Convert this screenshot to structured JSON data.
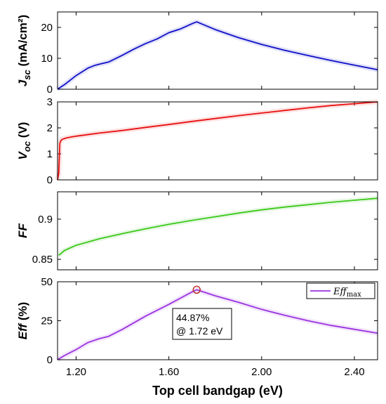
{
  "chart_data": [
    {
      "type": "line",
      "id": "jsc",
      "ylabel": {
        "main": "J",
        "sub": "sc",
        "unit": " (mA/cm²)"
      },
      "xlim": [
        1.12,
        2.5
      ],
      "ylim": [
        0,
        25
      ],
      "yticks": [
        0,
        10,
        20
      ],
      "color": "#1010c8",
      "series": [
        {
          "x": [
            1.12,
            1.15,
            1.2,
            1.25,
            1.28,
            1.3,
            1.34,
            1.4,
            1.45,
            1.5,
            1.55,
            1.6,
            1.65,
            1.7,
            1.72,
            1.8,
            1.9,
            2.0,
            2.1,
            2.2,
            2.3,
            2.4,
            2.5
          ],
          "values": [
            0,
            1.5,
            4.4,
            6.8,
            7.7,
            8.1,
            8.8,
            11.0,
            13.0,
            14.8,
            16.3,
            18.3,
            19.5,
            21.2,
            21.8,
            19.3,
            16.7,
            14.5,
            12.6,
            10.9,
            9.3,
            7.8,
            6.3
          ]
        }
      ]
    },
    {
      "type": "line",
      "id": "voc",
      "ylabel": {
        "main": "V",
        "sub": "oc",
        "unit": " (V)"
      },
      "xlim": [
        1.12,
        2.5
      ],
      "ylim": [
        0,
        3
      ],
      "yticks": [
        0,
        1,
        2,
        3
      ],
      "color": "#e81010",
      "series": [
        {
          "x": [
            1.12,
            1.125,
            1.13,
            1.135,
            1.14,
            1.16,
            1.2,
            1.3,
            1.4,
            1.5,
            1.6,
            1.7,
            1.8,
            1.9,
            2.0,
            2.1,
            2.2,
            2.3,
            2.4,
            2.5
          ],
          "values": [
            0,
            0.25,
            1.42,
            1.52,
            1.56,
            1.62,
            1.68,
            1.8,
            1.9,
            2.02,
            2.13,
            2.25,
            2.36,
            2.47,
            2.57,
            2.67,
            2.77,
            2.86,
            2.93,
            3.0
          ]
        }
      ]
    },
    {
      "type": "line",
      "id": "ff",
      "ylabel": {
        "main": "FF",
        "sub": "",
        "unit": ""
      },
      "xlim": [
        1.12,
        2.5
      ],
      "ylim": [
        0.837,
        0.934
      ],
      "yticks": [
        0.85,
        0.9
      ],
      "ytick_labels": [
        "0.85",
        "0.9"
      ],
      "color": "#3cc81c",
      "series": [
        {
          "x": [
            1.125,
            1.15,
            1.2,
            1.3,
            1.4,
            1.5,
            1.6,
            1.7,
            1.8,
            1.9,
            2.0,
            2.1,
            2.2,
            2.3,
            2.4,
            2.5
          ],
          "values": [
            0.855,
            0.861,
            0.8675,
            0.8755,
            0.882,
            0.888,
            0.8935,
            0.8985,
            0.903,
            0.9075,
            0.9115,
            0.915,
            0.918,
            0.921,
            0.9235,
            0.926
          ]
        }
      ]
    },
    {
      "type": "line",
      "id": "eff",
      "ylabel": {
        "main": "Eff",
        "sub": "",
        "unit": " (%)"
      },
      "xlim": [
        1.12,
        2.5
      ],
      "ylim": [
        0,
        50
      ],
      "yticks": [
        0,
        25,
        50
      ],
      "xticks": [
        1.2,
        1.6,
        2.0,
        2.4
      ],
      "xtick_labels": [
        "1.20",
        "1.60",
        "2.00",
        "2.40"
      ],
      "xlabel": "Top cell bandgap (eV)",
      "color": "#9a32e0",
      "series": [
        {
          "name": "Eff max",
          "x": [
            1.12,
            1.15,
            1.2,
            1.25,
            1.3,
            1.34,
            1.4,
            1.5,
            1.6,
            1.7,
            1.72,
            1.8,
            1.9,
            2.0,
            2.1,
            2.2,
            2.3,
            2.4,
            2.5
          ],
          "values": [
            0,
            2.7,
            6.5,
            11.0,
            13.5,
            15.0,
            19.5,
            28.0,
            35.5,
            43.5,
            44.87,
            41.0,
            36.8,
            32.3,
            28.5,
            25.0,
            22.0,
            19.5,
            17.0
          ]
        }
      ],
      "marker": {
        "x": 1.72,
        "y": 44.87
      },
      "annotation": {
        "line1": "44.87%",
        "line2": "@ 1.72 eV"
      },
      "legend": {
        "label": "Eff",
        "sub": "max",
        "position": "top-right"
      }
    }
  ]
}
